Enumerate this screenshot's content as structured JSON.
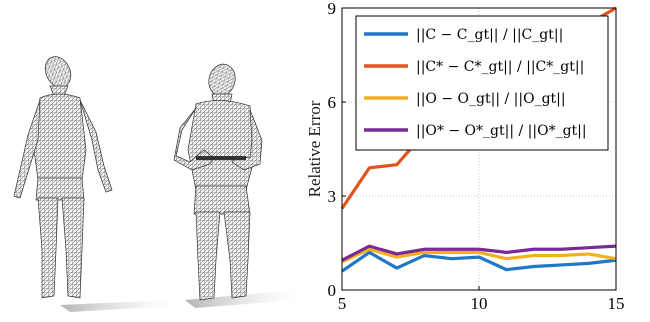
{
  "figure": {
    "left_panel": {
      "meshes": [
        {
          "name": "figure-mesh-standing"
        },
        {
          "name": "figure-mesh-bending"
        }
      ]
    },
    "right_panel": {
      "chart_data": {
        "type": "line",
        "x": [
          5,
          6,
          7,
          8,
          9,
          10,
          11,
          12,
          13,
          14,
          15
        ],
        "xlim": [
          5,
          15
        ],
        "ylim": [
          0,
          9
        ],
        "xticks": [
          "5",
          "10",
          "15"
        ],
        "yticks": [
          "0",
          "3",
          "6",
          "9"
        ],
        "xlabel": "",
        "ylabel": "Relative Error",
        "grid": true,
        "legend_position": "top-right",
        "series": [
          {
            "name": "||C − C_gt|| / ||C_gt||",
            "color": "#1f77c6",
            "values": [
              0.6,
              1.2,
              0.7,
              1.1,
              1.0,
              1.05,
              0.65,
              0.75,
              0.8,
              0.85,
              0.95
            ]
          },
          {
            "name": "||C* − C*_gt|| / ||C*_gt||",
            "color": "#e2541c",
            "values": [
              2.6,
              3.9,
              4.0,
              5.0,
              5.6,
              6.0,
              7.0,
              7.6,
              8.0,
              8.5,
              9.0
            ]
          },
          {
            "name": "||O − O_gt|| / ||O_gt||",
            "color": "#f2b01e",
            "values": [
              0.9,
              1.3,
              1.05,
              1.2,
              1.2,
              1.2,
              1.0,
              1.1,
              1.1,
              1.15,
              1.0
            ]
          },
          {
            "name": "||O* − O*_gt|| / ||O*_gt||",
            "color": "#7a2a96",
            "values": [
              0.95,
              1.4,
              1.15,
              1.3,
              1.3,
              1.3,
              1.2,
              1.3,
              1.3,
              1.35,
              1.4
            ]
          }
        ]
      }
    }
  }
}
